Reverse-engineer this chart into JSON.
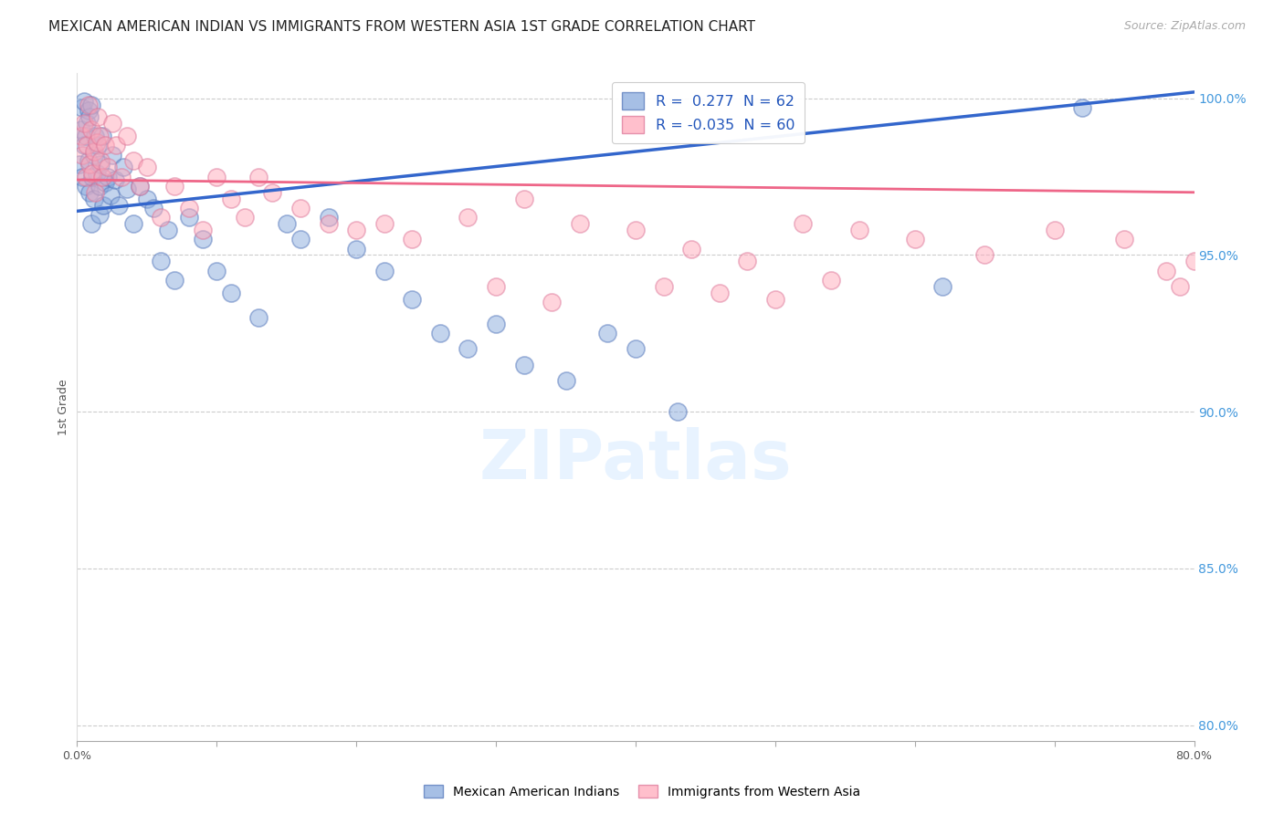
{
  "title": "MEXICAN AMERICAN INDIAN VS IMMIGRANTS FROM WESTERN ASIA 1ST GRADE CORRELATION CHART",
  "source": "Source: ZipAtlas.com",
  "ylabel": "1st Grade",
  "xmin": 0.0,
  "xmax": 0.8,
  "ymin": 0.795,
  "ymax": 1.008,
  "yticks": [
    0.8,
    0.85,
    0.9,
    0.95,
    1.0
  ],
  "ytick_labels": [
    "80.0%",
    "85.0%",
    "90.0%",
    "95.0%",
    "100.0%"
  ],
  "xticks": [
    0.0,
    0.1,
    0.2,
    0.3,
    0.4,
    0.5,
    0.6,
    0.7,
    0.8
  ],
  "xtick_labels": [
    "0.0%",
    "",
    "",
    "",
    "",
    "",
    "",
    "",
    "80.0%"
  ],
  "legend_label1": "Mexican American Indians",
  "legend_label2": "Immigrants from Western Asia",
  "R1": 0.277,
  "N1": 62,
  "R2": -0.035,
  "N2": 60,
  "color1": "#88AADD",
  "color2": "#FFAABB",
  "trendline1_color": "#3366CC",
  "trendline2_color": "#EE6688",
  "watermark_text": "ZIPatlas",
  "background_color": "#FFFFFF",
  "grid_color": "#CCCCCC",
  "title_fontsize": 11,
  "axis_label_fontsize": 9,
  "tick_fontsize": 9,
  "blue_x": [
    0.002,
    0.003,
    0.004,
    0.004,
    0.005,
    0.005,
    0.006,
    0.006,
    0.007,
    0.008,
    0.008,
    0.009,
    0.009,
    0.01,
    0.01,
    0.011,
    0.012,
    0.012,
    0.013,
    0.014,
    0.015,
    0.016,
    0.016,
    0.017,
    0.018,
    0.019,
    0.02,
    0.022,
    0.024,
    0.025,
    0.027,
    0.03,
    0.033,
    0.036,
    0.04,
    0.045,
    0.05,
    0.055,
    0.06,
    0.065,
    0.07,
    0.08,
    0.09,
    0.1,
    0.11,
    0.13,
    0.15,
    0.16,
    0.18,
    0.2,
    0.22,
    0.24,
    0.26,
    0.28,
    0.3,
    0.32,
    0.35,
    0.38,
    0.4,
    0.43,
    0.62,
    0.72
  ],
  "blue_y": [
    0.979,
    0.99,
    0.997,
    0.975,
    0.985,
    0.999,
    0.988,
    0.972,
    0.992,
    0.996,
    0.98,
    0.994,
    0.97,
    0.998,
    0.96,
    0.975,
    0.982,
    0.968,
    0.988,
    0.976,
    0.985,
    0.972,
    0.963,
    0.979,
    0.988,
    0.966,
    0.973,
    0.975,
    0.969,
    0.982,
    0.974,
    0.966,
    0.978,
    0.971,
    0.96,
    0.972,
    0.968,
    0.965,
    0.948,
    0.958,
    0.942,
    0.962,
    0.955,
    0.945,
    0.938,
    0.93,
    0.96,
    0.955,
    0.962,
    0.952,
    0.945,
    0.936,
    0.925,
    0.92,
    0.928,
    0.915,
    0.91,
    0.925,
    0.92,
    0.9,
    0.94,
    0.997
  ],
  "pink_x": [
    0.003,
    0.004,
    0.005,
    0.006,
    0.007,
    0.008,
    0.009,
    0.01,
    0.011,
    0.012,
    0.013,
    0.014,
    0.015,
    0.016,
    0.017,
    0.018,
    0.02,
    0.022,
    0.025,
    0.028,
    0.032,
    0.036,
    0.04,
    0.045,
    0.05,
    0.06,
    0.07,
    0.08,
    0.09,
    0.1,
    0.11,
    0.12,
    0.13,
    0.14,
    0.16,
    0.18,
    0.2,
    0.22,
    0.24,
    0.28,
    0.32,
    0.36,
    0.4,
    0.44,
    0.48,
    0.52,
    0.56,
    0.6,
    0.65,
    0.7,
    0.75,
    0.78,
    0.79,
    0.8,
    0.5,
    0.54,
    0.3,
    0.34,
    0.42,
    0.46
  ],
  "pink_y": [
    0.988,
    0.982,
    0.992,
    0.975,
    0.985,
    0.998,
    0.979,
    0.99,
    0.976,
    0.983,
    0.97,
    0.986,
    0.994,
    0.988,
    0.98,
    0.975,
    0.985,
    0.978,
    0.992,
    0.985,
    0.975,
    0.988,
    0.98,
    0.972,
    0.978,
    0.962,
    0.972,
    0.965,
    0.958,
    0.975,
    0.968,
    0.962,
    0.975,
    0.97,
    0.965,
    0.96,
    0.958,
    0.96,
    0.955,
    0.962,
    0.968,
    0.96,
    0.958,
    0.952,
    0.948,
    0.96,
    0.958,
    0.955,
    0.95,
    0.958,
    0.955,
    0.945,
    0.94,
    0.948,
    0.936,
    0.942,
    0.94,
    0.935,
    0.94,
    0.938
  ],
  "trendline_blue_x0": 0.0,
  "trendline_blue_y0": 0.964,
  "trendline_blue_x1": 0.8,
  "trendline_blue_y1": 1.002,
  "trendline_pink_x0": 0.0,
  "trendline_pink_y0": 0.974,
  "trendline_pink_x1": 0.8,
  "trendline_pink_y1": 0.97
}
